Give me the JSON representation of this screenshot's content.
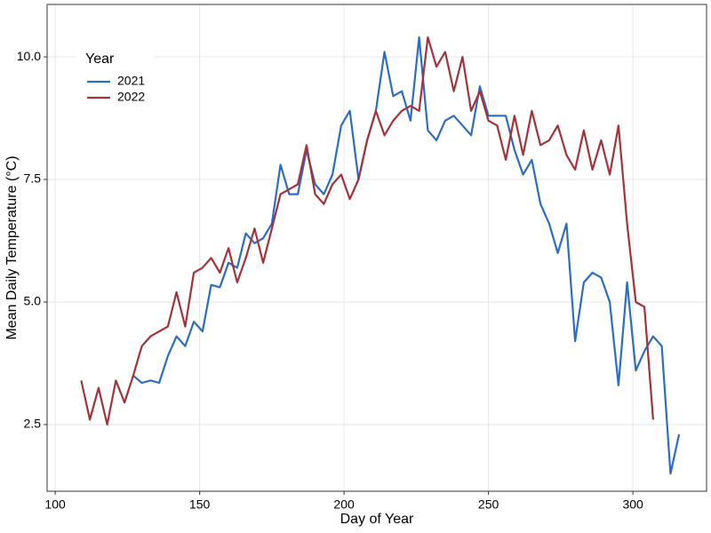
{
  "chart_data": {
    "type": "line",
    "x_label": "Day of Year",
    "y_label": "Mean Daily Temperature (°C)",
    "legend_title": "Year",
    "legend_position": "top-left",
    "grid": true,
    "x": [
      109,
      112,
      115,
      118,
      121,
      124,
      127,
      130,
      133,
      136,
      139,
      142,
      145,
      148,
      151,
      154,
      157,
      160,
      163,
      166,
      169,
      172,
      175,
      178,
      181,
      184,
      187,
      190,
      193,
      196,
      199,
      202,
      205,
      208,
      211,
      214,
      217,
      220,
      223,
      226,
      229,
      232,
      235,
      238,
      241,
      244,
      247,
      250,
      253,
      256,
      259,
      262,
      265,
      268,
      271,
      274,
      277,
      280,
      283,
      286,
      289,
      292,
      295,
      298,
      301,
      304,
      307,
      310,
      313,
      316
    ],
    "series": [
      {
        "name": "2021",
        "color": "#2b6cc4",
        "values": [
          null,
          null,
          null,
          null,
          null,
          null,
          3.5,
          3.35,
          3.4,
          3.35,
          3.9,
          4.3,
          4.1,
          4.6,
          4.4,
          5.35,
          5.3,
          5.8,
          5.7,
          6.4,
          6.2,
          6.3,
          6.6,
          7.8,
          7.2,
          7.2,
          8.1,
          7.4,
          7.2,
          7.6,
          8.6,
          8.9,
          7.5,
          8.3,
          8.9,
          10.1,
          9.2,
          9.3,
          8.7,
          10.4,
          8.5,
          8.3,
          8.7,
          8.8,
          8.6,
          8.4,
          9.4,
          8.8,
          8.8,
          8.8,
          8.1,
          7.6,
          7.9,
          7.0,
          6.6,
          6.0,
          6.6,
          4.2,
          5.4,
          5.6,
          5.5,
          5.0,
          3.3,
          5.4,
          3.6,
          4.0,
          4.3,
          4.1,
          1.5,
          2.3
        ]
      },
      {
        "name": "2022",
        "color": "#a3323a",
        "values": [
          3.4,
          2.6,
          3.25,
          2.5,
          3.4,
          2.95,
          3.5,
          4.1,
          4.3,
          4.4,
          4.5,
          5.2,
          4.5,
          5.6,
          5.7,
          5.9,
          5.6,
          6.1,
          5.4,
          5.9,
          6.5,
          5.8,
          6.5,
          7.2,
          7.3,
          7.4,
          8.2,
          7.2,
          7.0,
          7.4,
          7.6,
          7.1,
          7.5,
          8.3,
          8.9,
          8.4,
          8.7,
          8.9,
          9.0,
          8.9,
          10.4,
          9.8,
          10.1,
          9.3,
          10.0,
          8.9,
          9.3,
          8.7,
          8.6,
          7.9,
          8.8,
          8.0,
          8.9,
          8.2,
          8.3,
          8.6,
          8.0,
          7.7,
          8.5,
          7.7,
          8.3,
          7.6,
          8.6,
          6.6,
          5.0,
          4.9,
          2.6,
          null,
          null,
          null
        ]
      }
    ],
    "xlim": [
      97.2,
      325.5
    ],
    "ylim": [
      1.14,
      11.07
    ],
    "xticks": [
      100,
      150,
      200,
      250,
      300
    ],
    "yticks": [
      2.5,
      {
        "value": 5,
        "label": "5.0"
      },
      7.5,
      {
        "value": 10,
        "label": "10.0"
      }
    ]
  }
}
